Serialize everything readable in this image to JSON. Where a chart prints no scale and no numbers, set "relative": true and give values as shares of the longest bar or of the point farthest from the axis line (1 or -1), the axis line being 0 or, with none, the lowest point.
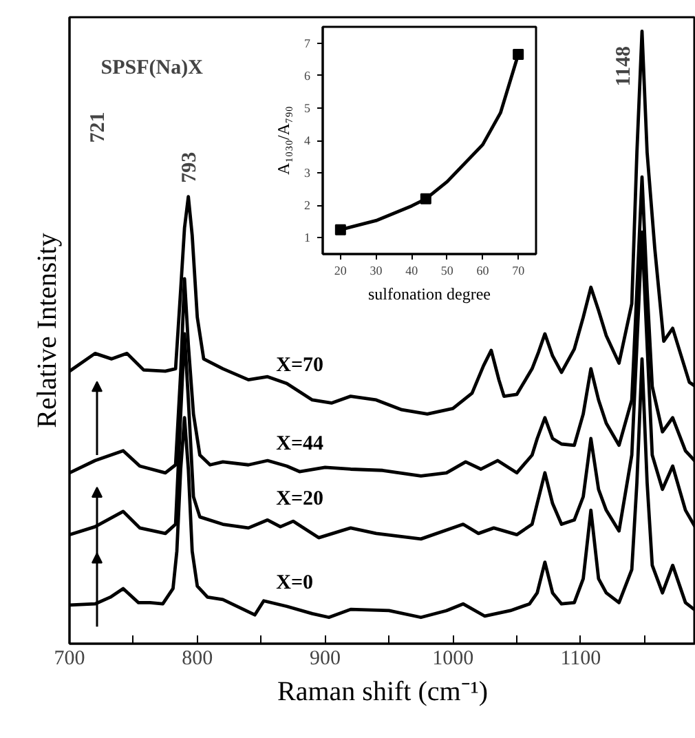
{
  "chart_data": [
    {
      "type": "line",
      "title": "SPSF(Na)X",
      "xlabel": "Raman shift (cm⁻¹)",
      "ylabel": "Relative Intensity",
      "relative": true,
      "xlim": [
        700,
        1190
      ],
      "xticks": [
        700,
        {
          "value": 750,
          "label": null
        },
        800,
        {
          "value": 850,
          "label": null
        },
        900,
        {
          "value": 950,
          "label": null
        },
        1000,
        {
          "value": 1050,
          "label": null
        },
        1100,
        {
          "value": 1150,
          "label": null
        }
      ],
      "annotations": [
        "721",
        {
          "text": "793",
          "x": 793,
          "y": 0.73
        },
        {
          "text": "1148",
          "x": 1148,
          "y": 1
        }
      ],
      "series": [
        {
          "name": "X=70",
          "color": "#000000",
          "x": [
            700,
            720,
            733,
            745,
            758,
            775,
            783,
            787,
            790,
            793,
            796,
            800,
            805,
            820,
            840,
            855,
            870,
            890,
            905,
            920,
            940,
            960,
            980,
            1000,
            1015,
            1024,
            1030,
            1036,
            1040,
            1050,
            1062,
            1067,
            1072,
            1078,
            1085,
            1095,
            1102,
            1108,
            1114,
            1120,
            1130,
            1140,
            1144,
            1148,
            1152,
            1158,
            1165,
            1172,
            1185,
            1190
          ],
          "values": [
            0.445,
            0.474,
            0.465,
            0.474,
            0.447,
            0.445,
            0.449,
            0.578,
            0.679,
            0.73,
            0.667,
            0.533,
            0.465,
            0.449,
            0.431,
            0.436,
            0.425,
            0.398,
            0.393,
            0.404,
            0.398,
            0.382,
            0.375,
            0.384,
            0.409,
            0.454,
            0.479,
            0.431,
            0.404,
            0.407,
            0.449,
            0.476,
            0.506,
            0.47,
            0.443,
            0.481,
            0.533,
            0.582,
            0.544,
            0.503,
            0.458,
            0.555,
            0.802,
            1,
            0.802,
            0.645,
            0.494,
            0.515,
            0.427,
            0.42
          ]
        },
        {
          "name": "X=44",
          "color": "#000000",
          "x": [
            700,
            720,
            742,
            755,
            775,
            783,
            787,
            790,
            793,
            797,
            802,
            810,
            820,
            840,
            855,
            870,
            880,
            900,
            920,
            945,
            975,
            995,
            1010,
            1022,
            1035,
            1050,
            1062,
            1066,
            1072,
            1078,
            1085,
            1095,
            1102,
            1108,
            1114,
            1120,
            1130,
            1140,
            1144,
            1148,
            1152,
            1156,
            1164,
            1172,
            1182,
            1190
          ],
          "values": [
            0.279,
            0.299,
            0.315,
            0.29,
            0.279,
            0.292,
            0.443,
            0.596,
            0.488,
            0.375,
            0.308,
            0.292,
            0.297,
            0.292,
            0.299,
            0.29,
            0.281,
            0.288,
            0.285,
            0.283,
            0.274,
            0.279,
            0.297,
            0.285,
            0.299,
            0.279,
            0.308,
            0.335,
            0.369,
            0.335,
            0.326,
            0.324,
            0.375,
            0.449,
            0.398,
            0.36,
            0.324,
            0.398,
            0.578,
            0.762,
            0.578,
            0.42,
            0.346,
            0.369,
            0.315,
            0.297
          ]
        },
        {
          "name": "X=20",
          "color": "#000000",
          "x": [
            700,
            720,
            742,
            755,
            775,
            783,
            787,
            790,
            793,
            797,
            802,
            820,
            840,
            855,
            865,
            875,
            895,
            920,
            940,
            975,
            1008,
            1020,
            1032,
            1050,
            1062,
            1066,
            1072,
            1078,
            1085,
            1095,
            1102,
            1108,
            1114,
            1120,
            1130,
            1140,
            1144,
            1148,
            1152,
            1156,
            1164,
            1172,
            1182,
            1190
          ],
          "values": [
            0.178,
            0.191,
            0.216,
            0.189,
            0.18,
            0.195,
            0.375,
            0.506,
            0.398,
            0.24,
            0.207,
            0.195,
            0.189,
            0.202,
            0.191,
            0.2,
            0.173,
            0.189,
            0.18,
            0.171,
            0.195,
            0.18,
            0.189,
            0.178,
            0.195,
            0.229,
            0.279,
            0.229,
            0.195,
            0.202,
            0.24,
            0.335,
            0.252,
            0.218,
            0.184,
            0.308,
            0.488,
            0.672,
            0.488,
            0.308,
            0.252,
            0.29,
            0.218,
            0.189
          ]
        },
        {
          "name": "X=0",
          "color": "#000000",
          "x": [
            700,
            720,
            732,
            742,
            754,
            763,
            773,
            781,
            784,
            787,
            790,
            793,
            796,
            800,
            808,
            820,
            845,
            852,
            870,
            890,
            903,
            920,
            950,
            975,
            995,
            1008,
            1025,
            1045,
            1060,
            1066,
            1072,
            1078,
            1085,
            1095,
            1102,
            1108,
            1114,
            1120,
            1130,
            1140,
            1144,
            1148,
            1152,
            1156,
            1164,
            1172,
            1182,
            1190
          ],
          "values": [
            0.063,
            0.065,
            0.076,
            0.09,
            0.067,
            0.067,
            0.065,
            0.09,
            0.151,
            0.285,
            0.369,
            0.285,
            0.151,
            0.094,
            0.076,
            0.072,
            0.047,
            0.07,
            0.061,
            0.049,
            0.043,
            0.056,
            0.054,
            0.043,
            0.054,
            0.065,
            0.045,
            0.054,
            0.065,
            0.083,
            0.133,
            0.083,
            0.065,
            0.067,
            0.106,
            0.218,
            0.106,
            0.083,
            0.067,
            0.121,
            0.263,
            0.465,
            0.263,
            0.128,
            0.083,
            0.128,
            0.067,
            0.054
          ]
        }
      ]
    },
    {
      "type": "scatter",
      "xlabel": "sulfonation degree",
      "ylabel": "A₁₀₃₀/A₇₉₀",
      "xlim": [
        15,
        75
      ],
      "ylim": [
        0.5,
        7.5
      ],
      "xticks": [
        20,
        30,
        40,
        50,
        60,
        70
      ],
      "yticks": [
        1,
        2,
        3,
        4,
        5,
        6,
        7
      ],
      "series": [
        {
          "type": "scatter",
          "color": "#000000",
          "marker": "square",
          "x": [
            20,
            44,
            70
          ],
          "values": [
            1.25,
            2.2,
            6.65
          ]
        },
        {
          "type": "line",
          "color": "#000000",
          "x": [
            20,
            30,
            40,
            44,
            50,
            60,
            65,
            70
          ],
          "values": [
            1.25,
            1.53,
            1.98,
            2.2,
            2.73,
            3.87,
            4.85,
            6.65
          ]
        }
      ]
    }
  ]
}
